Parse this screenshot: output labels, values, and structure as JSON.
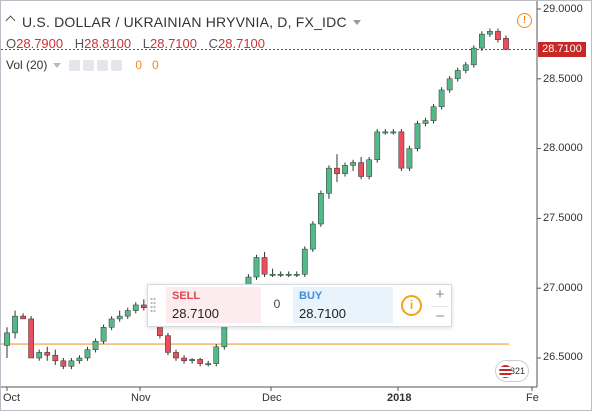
{
  "header": {
    "title": "U.S. DOLLAR / UKRAINIAN HRYVNIA, D, FX_IDC",
    "ohlc": [
      {
        "label": "O",
        "value": "28.7900"
      },
      {
        "label": "H",
        "value": "28.8100"
      },
      {
        "label": "L",
        "value": "28.7100"
      },
      {
        "label": "C",
        "value": "28.7100"
      }
    ],
    "volume_label": "Vol (20)",
    "volume_values": [
      "0",
      "0"
    ]
  },
  "last_price_tag": "28.7100",
  "trade_panel": {
    "sell_label": "SELL",
    "sell_price": "28.7100",
    "spread": "0",
    "buy_label": "BUY",
    "buy_price": "28.7100",
    "info_icon": "i",
    "zoom_in": "+",
    "zoom_out": "–"
  },
  "watermark_badge": "6321",
  "colors": {
    "up": "#53b987",
    "down": "#eb4d5c",
    "price_line": "#c62828",
    "orange_line": "#f29b3b",
    "accent": "#f08a24"
  },
  "chart_data": {
    "type": "candlestick",
    "x_tick_labels": [
      "Oct",
      "Nov",
      "Dec",
      "2018",
      "Fe"
    ],
    "y_tick_labels": [
      "29.0000",
      "28.5000",
      "28.0000",
      "27.5000",
      "27.0000",
      "26.5000"
    ],
    "ylim": [
      26.3,
      29.05
    ],
    "horizontal_line": 26.6,
    "last_price": 28.71,
    "candles": [
      [
        26.59,
        26.72,
        26.5,
        26.68
      ],
      [
        26.68,
        26.84,
        26.64,
        26.8
      ],
      [
        26.8,
        26.82,
        26.78,
        26.78
      ],
      [
        26.78,
        26.8,
        26.5,
        26.5
      ],
      [
        26.5,
        26.56,
        26.48,
        26.54
      ],
      [
        26.54,
        26.58,
        26.48,
        26.52
      ],
      [
        26.52,
        26.56,
        26.45,
        26.48
      ],
      [
        26.48,
        26.5,
        26.42,
        26.44
      ],
      [
        26.44,
        26.5,
        26.42,
        26.48
      ],
      [
        26.48,
        26.52,
        26.46,
        26.5
      ],
      [
        26.5,
        26.58,
        26.48,
        26.56
      ],
      [
        26.56,
        26.64,
        26.54,
        26.62
      ],
      [
        26.62,
        26.74,
        26.6,
        26.72
      ],
      [
        26.72,
        26.8,
        26.7,
        26.78
      ],
      [
        26.78,
        26.84,
        26.76,
        26.8
      ],
      [
        26.8,
        26.86,
        26.78,
        26.84
      ],
      [
        26.84,
        26.9,
        26.82,
        26.88
      ],
      [
        26.88,
        26.92,
        26.84,
        26.86
      ],
      [
        26.86,
        26.88,
        26.8,
        26.82
      ],
      [
        26.82,
        26.84,
        26.64,
        26.66
      ],
      [
        26.66,
        26.68,
        26.52,
        26.54
      ],
      [
        26.54,
        26.56,
        26.48,
        26.5
      ],
      [
        26.5,
        26.52,
        26.46,
        26.48
      ],
      [
        26.48,
        26.5,
        26.46,
        26.49
      ],
      [
        26.49,
        26.5,
        26.44,
        26.46
      ],
      [
        26.46,
        26.48,
        26.44,
        26.46
      ],
      [
        26.46,
        26.6,
        26.44,
        26.58
      ],
      [
        26.58,
        26.8,
        26.56,
        26.78
      ],
      [
        26.78,
        26.96,
        26.76,
        26.94
      ],
      [
        26.94,
        27.02,
        26.92,
        27.0
      ],
      [
        27.0,
        27.1,
        26.98,
        27.08
      ],
      [
        27.08,
        27.24,
        27.06,
        27.22
      ],
      [
        27.22,
        27.26,
        27.08,
        27.1
      ],
      [
        27.1,
        27.14,
        27.08,
        27.1
      ],
      [
        27.1,
        27.12,
        27.08,
        27.1
      ],
      [
        27.1,
        27.12,
        27.08,
        27.1
      ],
      [
        27.1,
        27.12,
        27.08,
        27.1
      ],
      [
        27.1,
        27.3,
        27.08,
        27.28
      ],
      [
        27.28,
        27.48,
        27.26,
        27.46
      ],
      [
        27.46,
        27.7,
        27.44,
        27.68
      ],
      [
        27.68,
        27.88,
        27.64,
        27.86
      ],
      [
        27.86,
        27.96,
        27.76,
        27.82
      ],
      [
        27.82,
        27.9,
        27.8,
        27.88
      ],
      [
        27.88,
        27.92,
        27.84,
        27.9
      ],
      [
        27.9,
        27.94,
        27.78,
        27.8
      ],
      [
        27.8,
        27.94,
        27.78,
        27.92
      ],
      [
        27.92,
        28.14,
        27.9,
        28.12
      ],
      [
        28.12,
        28.14,
        28.1,
        28.12
      ],
      [
        28.12,
        28.14,
        28.1,
        28.12
      ],
      [
        28.12,
        28.14,
        27.84,
        27.86
      ],
      [
        27.86,
        28.02,
        27.84,
        28.0
      ],
      [
        28.0,
        28.2,
        27.98,
        28.18
      ],
      [
        28.18,
        28.22,
        28.16,
        28.2
      ],
      [
        28.2,
        28.32,
        28.18,
        28.3
      ],
      [
        28.3,
        28.44,
        28.28,
        28.42
      ],
      [
        28.42,
        28.52,
        28.4,
        28.5
      ],
      [
        28.5,
        28.58,
        28.48,
        28.56
      ],
      [
        28.56,
        28.62,
        28.54,
        28.6
      ],
      [
        28.6,
        28.74,
        28.58,
        28.72
      ],
      [
        28.72,
        28.84,
        28.7,
        28.82
      ],
      [
        28.82,
        28.86,
        28.8,
        28.84
      ],
      [
        28.84,
        28.86,
        28.76,
        28.78
      ],
      [
        28.79,
        28.81,
        28.71,
        28.71
      ]
    ]
  }
}
